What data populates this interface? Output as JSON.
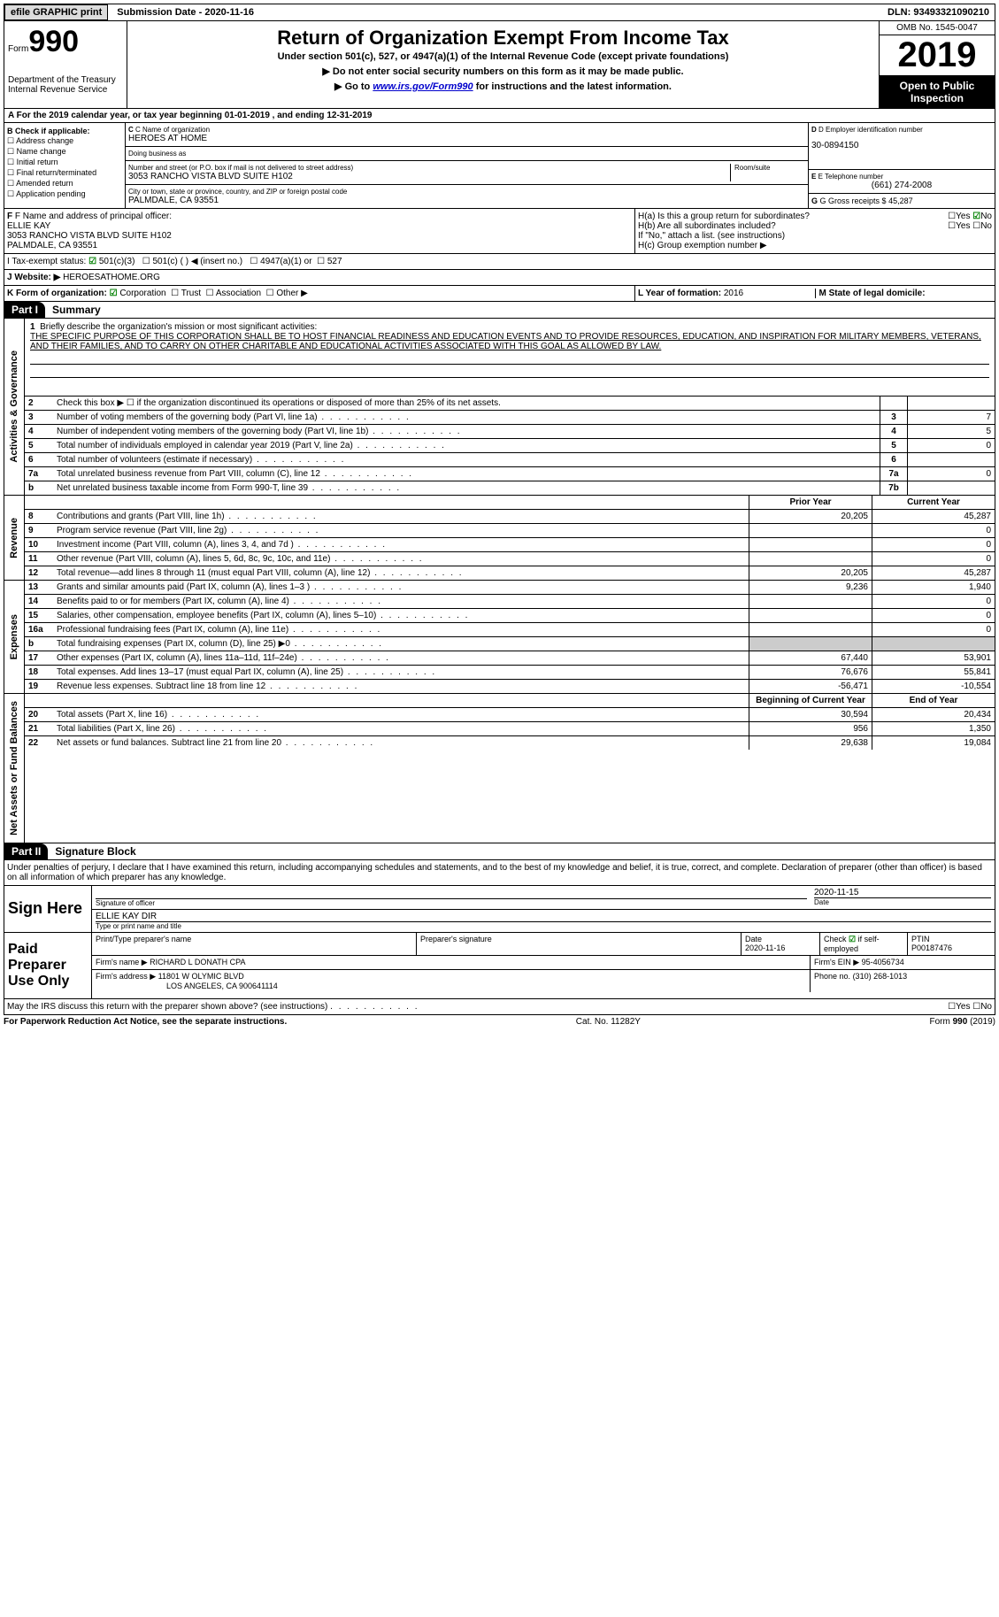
{
  "topbar": {
    "efile": "efile GRAPHIC print",
    "subdate_label": "Submission Date - ",
    "subdate": "2020-11-16",
    "dln": "DLN: 93493321090210"
  },
  "header": {
    "form_label": "Form",
    "form_num": "990",
    "dept1": "Department of the Treasury",
    "dept2": "Internal Revenue Service",
    "title": "Return of Organization Exempt From Income Tax",
    "sub1": "Under section 501(c), 527, or 4947(a)(1) of the Internal Revenue Code (except private foundations)",
    "sub2": "▶ Do not enter social security numbers on this form as it may be made public.",
    "sub3a": "▶ Go to ",
    "sub3_link": "www.irs.gov/Form990",
    "sub3b": " for instructions and the latest information.",
    "omb": "OMB No. 1545-0047",
    "year": "2019",
    "open": "Open to Public Inspection"
  },
  "lineA": "A For the 2019 calendar year, or tax year beginning 01-01-2019    , and ending 12-31-2019",
  "colB": {
    "head": "B Check if applicable:",
    "items": [
      "Address change",
      "Name change",
      "Initial return",
      "Final return/terminated",
      "Amended return",
      "Application pending"
    ]
  },
  "colC": {
    "c_label": "C Name of organization",
    "c_name": "HEROES AT HOME",
    "dba_label": "Doing business as",
    "dba": "",
    "addr_label": "Number and street (or P.O. box if mail is not delivered to street address)",
    "room_label": "Room/suite",
    "addr": "3053 RANCHO VISTA BLVD SUITE H102",
    "city_label": "City or town, state or province, country, and ZIP or foreign postal code",
    "city": "PALMDALE, CA  93551"
  },
  "colD": {
    "d_label": "D Employer identification number",
    "ein": "30-0894150",
    "e_label": "E Telephone number",
    "phone": "(661) 274-2008",
    "g_label": "G Gross receipts $",
    "gross": "45,287"
  },
  "officer": {
    "f_label": "F Name and address of principal officer:",
    "name": "ELLIE KAY",
    "addr1": "3053 RANCHO VISTA BLVD SUITE H102",
    "addr2": "PALMDALE, CA  93551"
  },
  "h": {
    "ha": "H(a)  Is this a group return for subordinates?",
    "hb": "H(b)  Are all subordinates included?",
    "hb_note": "If \"No,\" attach a list. (see instructions)",
    "hc": "H(c)  Group exemption number ▶",
    "yes": "Yes",
    "no": "No"
  },
  "taxexempt": {
    "i_label": "I   Tax-exempt status:",
    "c3": "501(c)(3)",
    "c": "501(c) (  ) ◀ (insert no.)",
    "a1": "4947(a)(1) or",
    "s527": "527"
  },
  "website": {
    "j_label": "J   Website: ▶",
    "url": "HEROESATHOME.ORG"
  },
  "lineK": {
    "k_label": "K Form of organization:",
    "corp": "Corporation",
    "trust": "Trust",
    "assoc": "Association",
    "other": "Other ▶"
  },
  "lineL": {
    "l_label": "L Year of formation:",
    "l_val": "2016",
    "m_label": "M State of legal domicile:",
    "m_val": ""
  },
  "partI": {
    "head": "Part I",
    "title": "Summary"
  },
  "mission": {
    "num": "1",
    "label": "Briefly describe the organization's mission or most significant activities:",
    "text": "THE SPECIFIC PURPOSE OF THIS CORPORATION SHALL BE TO HOST FINANCIAL READINESS AND EDUCATION EVENTS AND TO PROVIDE RESOURCES, EDUCATION, AND INSPIRATION FOR MILITARY MEMBERS, VETERANS, AND THEIR FAMILIES, AND TO CARRY ON OTHER CHARITABLE AND EDUCATIONAL ACTIVITIES ASSOCIATED WITH THIS GOAL AS ALLOWED BY LAW."
  },
  "gov_rows": [
    {
      "num": "2",
      "text": "Check this box ▶ ☐  if the organization discontinued its operations or disposed of more than 25% of its net assets.",
      "box": "",
      "val": ""
    },
    {
      "num": "3",
      "text": "Number of voting members of the governing body (Part VI, line 1a)",
      "box": "3",
      "val": "7"
    },
    {
      "num": "4",
      "text": "Number of independent voting members of the governing body (Part VI, line 1b)",
      "box": "4",
      "val": "5"
    },
    {
      "num": "5",
      "text": "Total number of individuals employed in calendar year 2019 (Part V, line 2a)",
      "box": "5",
      "val": "0"
    },
    {
      "num": "6",
      "text": "Total number of volunteers (estimate if necessary)",
      "box": "6",
      "val": ""
    },
    {
      "num": "7a",
      "text": "Total unrelated business revenue from Part VIII, column (C), line 12",
      "box": "7a",
      "val": "0"
    },
    {
      "num": "b",
      "text": "Net unrelated business taxable income from Form 990-T, line 39",
      "box": "7b",
      "val": ""
    }
  ],
  "two_col_head": {
    "prior": "Prior Year",
    "current": "Current Year"
  },
  "rev_rows": [
    {
      "num": "8",
      "text": "Contributions and grants (Part VIII, line 1h)",
      "p": "20,205",
      "c": "45,287"
    },
    {
      "num": "9",
      "text": "Program service revenue (Part VIII, line 2g)",
      "p": "",
      "c": "0"
    },
    {
      "num": "10",
      "text": "Investment income (Part VIII, column (A), lines 3, 4, and 7d )",
      "p": "",
      "c": "0"
    },
    {
      "num": "11",
      "text": "Other revenue (Part VIII, column (A), lines 5, 6d, 8c, 9c, 10c, and 11e)",
      "p": "",
      "c": "0"
    },
    {
      "num": "12",
      "text": "Total revenue—add lines 8 through 11 (must equal Part VIII, column (A), line 12)",
      "p": "20,205",
      "c": "45,287"
    }
  ],
  "exp_rows": [
    {
      "num": "13",
      "text": "Grants and similar amounts paid (Part IX, column (A), lines 1–3 )",
      "p": "9,236",
      "c": "1,940"
    },
    {
      "num": "14",
      "text": "Benefits paid to or for members (Part IX, column (A), line 4)",
      "p": "",
      "c": "0"
    },
    {
      "num": "15",
      "text": "Salaries, other compensation, employee benefits (Part IX, column (A), lines 5–10)",
      "p": "",
      "c": "0"
    },
    {
      "num": "16a",
      "text": "Professional fundraising fees (Part IX, column (A), line 11e)",
      "p": "",
      "c": "0"
    },
    {
      "num": "b",
      "text": "Total fundraising expenses (Part IX, column (D), line 25) ▶0",
      "p": "shaded",
      "c": "shaded"
    },
    {
      "num": "17",
      "text": "Other expenses (Part IX, column (A), lines 11a–11d, 11f–24e)",
      "p": "67,440",
      "c": "53,901"
    },
    {
      "num": "18",
      "text": "Total expenses. Add lines 13–17 (must equal Part IX, column (A), line 25)",
      "p": "76,676",
      "c": "55,841"
    },
    {
      "num": "19",
      "text": "Revenue less expenses. Subtract line 18 from line 12",
      "p": "-56,471",
      "c": "-10,554"
    }
  ],
  "bal_head": {
    "begin": "Beginning of Current Year",
    "end": "End of Year"
  },
  "bal_rows": [
    {
      "num": "20",
      "text": "Total assets (Part X, line 16)",
      "p": "30,594",
      "c": "20,434"
    },
    {
      "num": "21",
      "text": "Total liabilities (Part X, line 26)",
      "p": "956",
      "c": "1,350"
    },
    {
      "num": "22",
      "text": "Net assets or fund balances. Subtract line 21 from line 20",
      "p": "29,638",
      "c": "19,084"
    }
  ],
  "vert": {
    "gov": "Activities & Governance",
    "rev": "Revenue",
    "exp": "Expenses",
    "bal": "Net Assets or Fund Balances"
  },
  "partII": {
    "head": "Part II",
    "title": "Signature Block",
    "decl": "Under penalties of perjury, I declare that I have examined this return, including accompanying schedules and statements, and to the best of my knowledge and belief, it is true, correct, and complete. Declaration of preparer (other than officer) is based on all information of which preparer has any knowledge."
  },
  "sign": {
    "label": "Sign Here",
    "sig_label": "Signature of officer",
    "date_label": "Date",
    "date": "2020-11-15",
    "name": "ELLIE KAY  DIR",
    "name_label": "Type or print name and title"
  },
  "preparer": {
    "label": "Paid Preparer Use Only",
    "h1": "Print/Type preparer's name",
    "h2": "Preparer's signature",
    "h3": "Date",
    "date": "2020-11-16",
    "h4": "Check ☑ if self-employed",
    "h5": "PTIN",
    "ptin": "P00187476",
    "firm_label": "Firm's name    ▶",
    "firm": "RICHARD L DONATH CPA",
    "ein_label": "Firm's EIN ▶",
    "ein": "95-4056734",
    "addr_label": "Firm's address ▶",
    "addr1": "11801 W OLYMIC BLVD",
    "addr2": "LOS ANGELES, CA  900641114",
    "phone_label": "Phone no.",
    "phone": "(310) 268-1013"
  },
  "discuss": "May the IRS discuss this return with the preparer shown above? (see instructions)",
  "footer": {
    "left": "For Paperwork Reduction Act Notice, see the separate instructions.",
    "mid": "Cat. No. 11282Y",
    "right": "Form 990 (2019)"
  }
}
